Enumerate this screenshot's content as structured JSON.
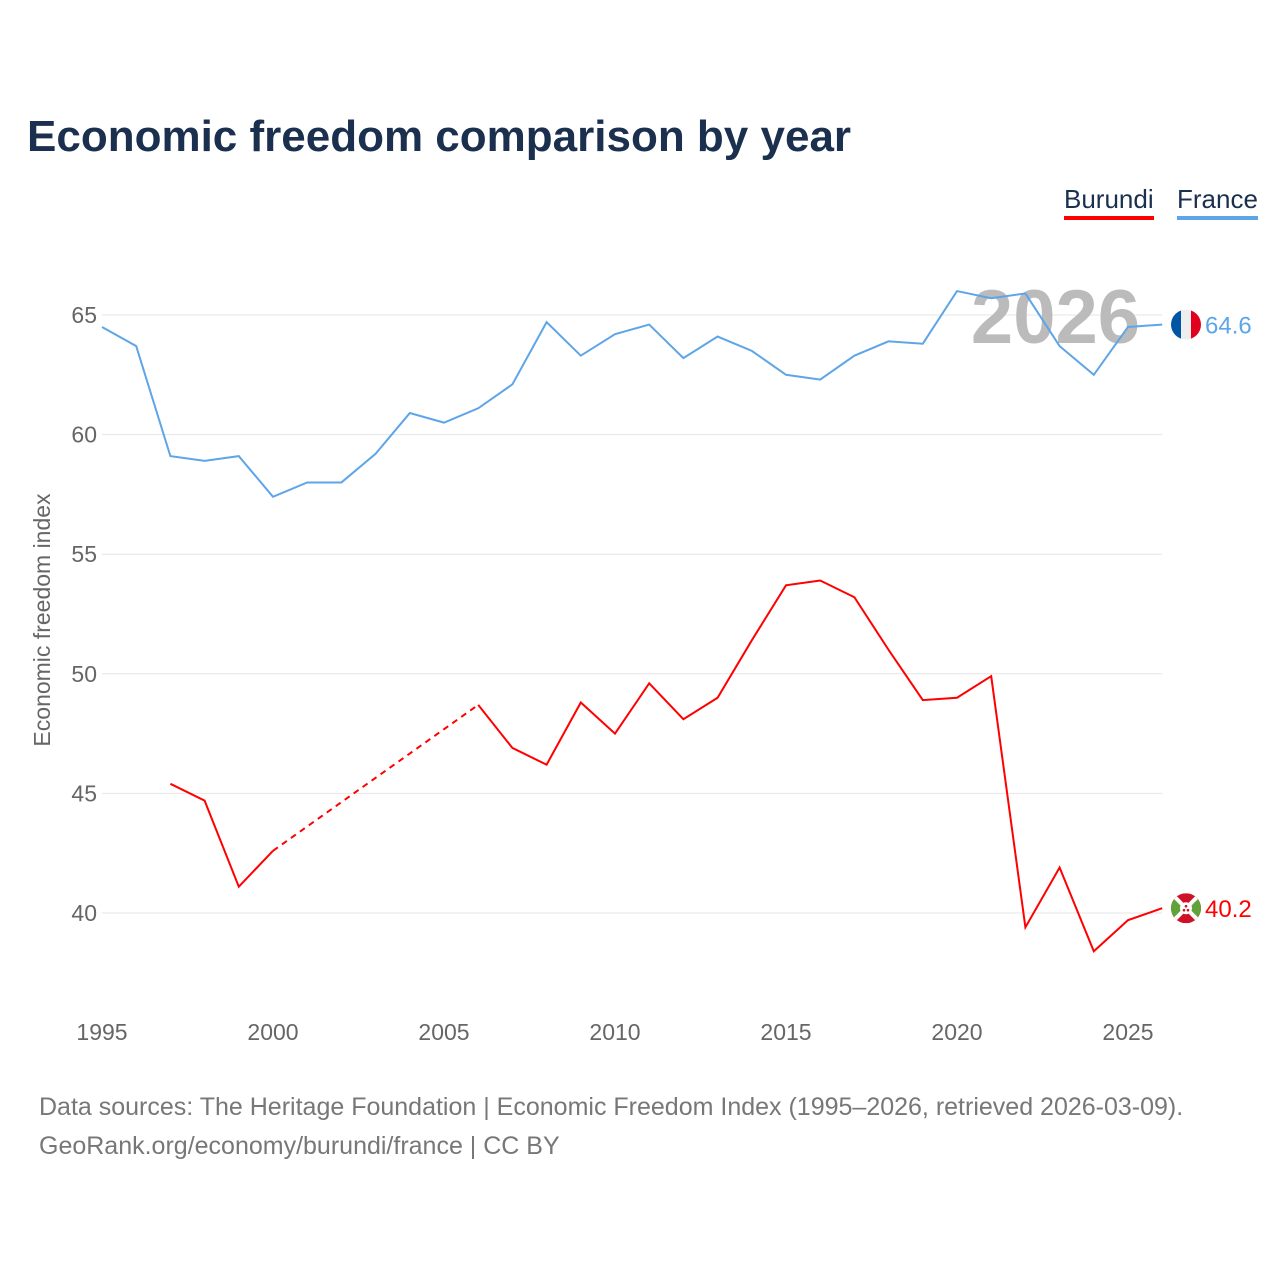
{
  "chart_data": {
    "type": "line",
    "title": "Economic freedom comparison by year",
    "ylabel": "Economic freedom index",
    "xlabel": "",
    "xlim": [
      1995,
      2026
    ],
    "ylim": [
      36.6,
      67.4
    ],
    "x_ticks": [
      "1995",
      "2000",
      "2005",
      "2010",
      "2015",
      "2020",
      "2025"
    ],
    "y_ticks": [
      "40",
      "45",
      "50",
      "55",
      "60",
      "65"
    ],
    "grid": true,
    "legend_position": "top-right",
    "year_watermark": "2026",
    "series": [
      {
        "name": "Burundi",
        "color": "#ff0000",
        "end_label": "40.2",
        "x": [
          1997,
          1998,
          1999,
          2000,
          2006,
          2007,
          2008,
          2009,
          2010,
          2011,
          2012,
          2013,
          2014,
          2015,
          2016,
          2017,
          2018,
          2019,
          2020,
          2021,
          2022,
          2023,
          2024,
          2025,
          2026
        ],
        "values": [
          45.4,
          44.7,
          41.1,
          42.6,
          48.7,
          46.9,
          46.2,
          48.8,
          47.5,
          49.6,
          48.1,
          49.0,
          51.4,
          53.7,
          53.9,
          53.2,
          51.0,
          48.9,
          49.0,
          49.9,
          39.4,
          41.9,
          38.4,
          39.7,
          40.2
        ],
        "gap": [
          2000,
          2006
        ]
      },
      {
        "name": "France",
        "color": "#5ea5e8",
        "end_label": "64.6",
        "x": [
          1995,
          1996,
          1997,
          1998,
          1999,
          2000,
          2001,
          2002,
          2003,
          2004,
          2005,
          2006,
          2007,
          2008,
          2009,
          2010,
          2011,
          2012,
          2013,
          2014,
          2015,
          2016,
          2017,
          2018,
          2019,
          2020,
          2021,
          2022,
          2023,
          2024,
          2025,
          2026
        ],
        "values": [
          64.5,
          63.7,
          59.1,
          58.9,
          59.1,
          57.4,
          58.0,
          58.0,
          59.2,
          60.9,
          60.5,
          61.1,
          62.1,
          64.7,
          63.3,
          64.2,
          64.6,
          63.2,
          64.1,
          63.5,
          62.5,
          62.3,
          63.3,
          63.9,
          63.8,
          66.0,
          65.7,
          65.9,
          63.7,
          62.5,
          64.5,
          64.6
        ]
      }
    ]
  },
  "footer": {
    "line1": "Data sources: The Heritage Foundation | Economic Freedom Index (1995–2026, retrieved 2026-03-09).",
    "line2": "GeoRank.org/economy/burundi/france | CC BY"
  }
}
